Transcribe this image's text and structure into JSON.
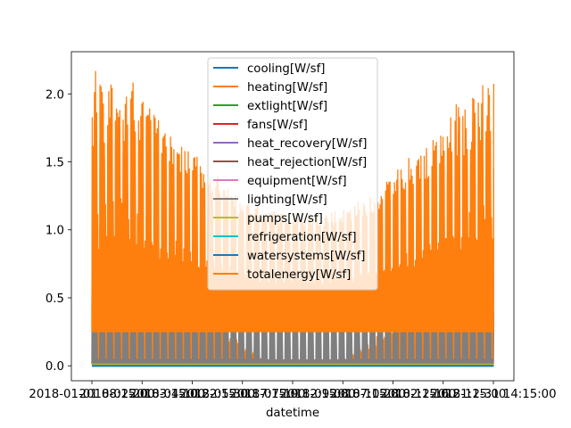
{
  "chart_data": {
    "type": "line",
    "title": "",
    "xlabel": "datetime",
    "ylabel": "",
    "x_tick_labels": [
      "2018-01-01 08:15:00",
      "2018-02-20 03:15:00",
      "2018-04-10 22:15:00",
      "2018-05-30 17:15:00",
      "2018-07-19 12:15:00",
      "2018-09-08 07:15:00",
      "2018-10-28 02:15:00",
      "2018-12-16 21:15:00"
    ],
    "x_start_label": "2018-01-01 08:15:00",
    "x_end_label": "2018-12-31 14:15:00",
    "y_ticks": [
      0.0,
      0.5,
      1.0,
      1.5,
      2.0
    ],
    "y_tick_labels": [
      "0.0",
      "0.5",
      "1.0",
      "1.5",
      "2.0"
    ],
    "ylim": [
      -0.11,
      2.31
    ],
    "grid": false,
    "legend_placement": "upper center",
    "series": [
      {
        "name": "cooling[W/sf]",
        "color": "#1f77b4",
        "profile": "flat",
        "base": 0.0
      },
      {
        "name": "heating[W/sf]",
        "color": "#ff7f0e",
        "profile": "heating",
        "peak_winter": 2.18,
        "summer_low": 0.01
      },
      {
        "name": "extlight[W/sf]",
        "color": "#2ca02c",
        "profile": "flat",
        "base": 0.02
      },
      {
        "name": "fans[W/sf]",
        "color": "#d62728",
        "profile": "flat",
        "base": 0.04
      },
      {
        "name": "heat_recovery[W/sf]",
        "color": "#9467bd",
        "profile": "flat",
        "base": 0.0
      },
      {
        "name": "heat_rejection[W/sf]",
        "color": "#8c564b",
        "profile": "flat",
        "base": 0.03
      },
      {
        "name": "equipment[W/sf]",
        "color": "#e377c2",
        "profile": "weekly",
        "low": 0.39,
        "high": 0.67
      },
      {
        "name": "lighting[W/sf]",
        "color": "#7f7f7f",
        "profile": "weekly",
        "low": 0.02,
        "high": 0.39
      },
      {
        "name": "pumps[W/sf]",
        "color": "#bcbd22",
        "profile": "flat",
        "base": 0.01
      },
      {
        "name": "refrigeration[W/sf]",
        "color": "#17becf",
        "profile": "flat",
        "base": 0.0
      },
      {
        "name": "watersystems[W/sf]",
        "color": "#1f77b4",
        "profile": "flat",
        "base": 0.0
      },
      {
        "name": "totalenergy[W/sf]",
        "color": "#ff7f0e",
        "profile": "total",
        "peak_winter": 2.18,
        "summer_high": 1.13,
        "low": 0.25
      }
    ]
  }
}
